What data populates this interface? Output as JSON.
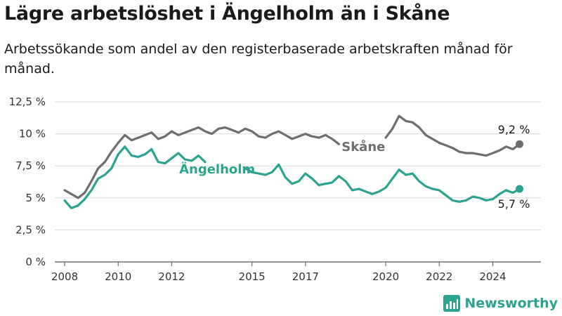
{
  "header": {
    "title": "Lägre arbetslöshet i Ängelholm än i Skåne",
    "subtitle": "Arbetssökande som andel av den registerbaserade arbetskraften månad för månad."
  },
  "brand": {
    "name": "Newsworthy",
    "color": "#2ca38f"
  },
  "chart_data": {
    "type": "line",
    "title": "Lägre arbetslöshet i Ängelholm än i Skåne",
    "subtitle": "Arbetssökande som andel av den registerbaserade arbetskraften månad för månad.",
    "xlabel": "",
    "ylabel": "",
    "xlim": [
      2007.5,
      2025.8
    ],
    "ylim": [
      0,
      12.5
    ],
    "y_ticks": [
      {
        "value": 0,
        "label": "0 %"
      },
      {
        "value": 2.5,
        "label": "2,5 %"
      },
      {
        "value": 5,
        "label": "5 %"
      },
      {
        "value": 7.5,
        "label": "7,5 %"
      },
      {
        "value": 10,
        "label": "10 %"
      },
      {
        "value": 12.5,
        "label": "12,5 %"
      }
    ],
    "x_ticks": [
      {
        "value": 2008,
        "label": "2008"
      },
      {
        "value": 2010,
        "label": "2010"
      },
      {
        "value": 2012,
        "label": "2012"
      },
      {
        "value": 2015,
        "label": "2015"
      },
      {
        "value": 2017,
        "label": "2017"
      },
      {
        "value": 2020,
        "label": "2020"
      },
      {
        "value": 2022,
        "label": "2022"
      },
      {
        "value": 2024,
        "label": "2024"
      }
    ],
    "grid": "horizontal",
    "legend": "inline labels",
    "series": [
      {
        "name": "Skåne",
        "color": "#6e6e6e",
        "end_label": "9,2 %",
        "x": [
          2008.0,
          2008.25,
          2008.5,
          2008.75,
          2009.0,
          2009.25,
          2009.5,
          2009.75,
          2010.0,
          2010.25,
          2010.5,
          2010.75,
          2011.0,
          2011.25,
          2011.5,
          2011.75,
          2012.0,
          2012.25,
          2012.5,
          2012.75,
          2013.0,
          2013.25,
          2013.5,
          2013.75,
          2014.0,
          2014.25,
          2014.5,
          2014.75,
          2015.0,
          2015.25,
          2015.5,
          2015.75,
          2016.0,
          2016.25,
          2016.5,
          2016.75,
          2017.0,
          2017.25,
          2017.5,
          2017.75,
          2018.0,
          2018.25,
          2018.5,
          2018.75,
          2019.0,
          2019.25,
          2019.5,
          2019.75,
          2020.0,
          2020.25,
          2020.5,
          2020.75,
          2021.0,
          2021.25,
          2021.5,
          2021.75,
          2022.0,
          2022.25,
          2022.5,
          2022.75,
          2023.0,
          2023.25,
          2023.5,
          2023.75,
          2024.0,
          2024.25,
          2024.5,
          2024.75,
          2025.0
        ],
        "values": [
          5.6,
          5.3,
          5.0,
          5.4,
          6.3,
          7.3,
          7.8,
          8.6,
          9.3,
          9.9,
          9.5,
          9.7,
          9.9,
          10.1,
          9.6,
          9.8,
          10.2,
          9.9,
          10.1,
          10.3,
          10.5,
          10.2,
          10.0,
          10.4,
          10.5,
          10.3,
          10.1,
          10.4,
          10.2,
          9.8,
          9.7,
          10.0,
          10.2,
          9.9,
          9.6,
          9.8,
          10.0,
          9.8,
          9.7,
          9.9,
          9.6,
          9.2,
          null,
          null,
          null,
          null,
          null,
          null,
          9.7,
          10.4,
          11.4,
          11.0,
          10.9,
          10.5,
          9.9,
          9.6,
          9.3,
          9.1,
          8.9,
          8.6,
          8.5,
          8.5,
          8.4,
          8.3,
          8.5,
          8.7,
          9.0,
          8.8,
          9.2
        ]
      },
      {
        "name": "Ängelholm",
        "color": "#2ca38f",
        "end_label": "5,7 %",
        "x": [
          2008.0,
          2008.25,
          2008.5,
          2008.75,
          2009.0,
          2009.25,
          2009.5,
          2009.75,
          2010.0,
          2010.25,
          2010.5,
          2010.75,
          2011.0,
          2011.25,
          2011.5,
          2011.75,
          2012.0,
          2012.25,
          2012.5,
          2012.75,
          2013.0,
          2013.25,
          2013.5,
          2013.75,
          2014.0,
          2014.25,
          2014.5,
          2014.75,
          2015.0,
          2015.25,
          2015.5,
          2015.75,
          2016.0,
          2016.25,
          2016.5,
          2016.75,
          2017.0,
          2017.25,
          2017.5,
          2017.75,
          2018.0,
          2018.25,
          2018.5,
          2018.75,
          2019.0,
          2019.25,
          2019.5,
          2019.75,
          2020.0,
          2020.25,
          2020.5,
          2020.75,
          2021.0,
          2021.25,
          2021.5,
          2021.75,
          2022.0,
          2022.25,
          2022.5,
          2022.75,
          2023.0,
          2023.25,
          2023.5,
          2023.75,
          2024.0,
          2024.25,
          2024.5,
          2024.75,
          2025.0
        ],
        "values": [
          4.8,
          4.2,
          4.4,
          4.9,
          5.6,
          6.5,
          6.8,
          7.3,
          8.4,
          9.0,
          8.3,
          8.2,
          8.4,
          8.8,
          7.8,
          7.7,
          8.1,
          8.5,
          8.0,
          7.9,
          8.3,
          7.8,
          null,
          null,
          null,
          null,
          null,
          7.3,
          7.0,
          6.9,
          6.8,
          7.0,
          7.6,
          6.6,
          6.1,
          6.3,
          6.9,
          6.5,
          6.0,
          6.1,
          6.2,
          6.7,
          6.3,
          5.6,
          5.7,
          5.5,
          5.3,
          5.5,
          5.8,
          6.5,
          7.2,
          6.8,
          6.9,
          6.3,
          5.9,
          5.7,
          5.6,
          5.2,
          4.8,
          4.7,
          4.8,
          5.1,
          5.0,
          4.8,
          4.9,
          5.3,
          5.6,
          5.4,
          5.7
        ]
      }
    ]
  }
}
